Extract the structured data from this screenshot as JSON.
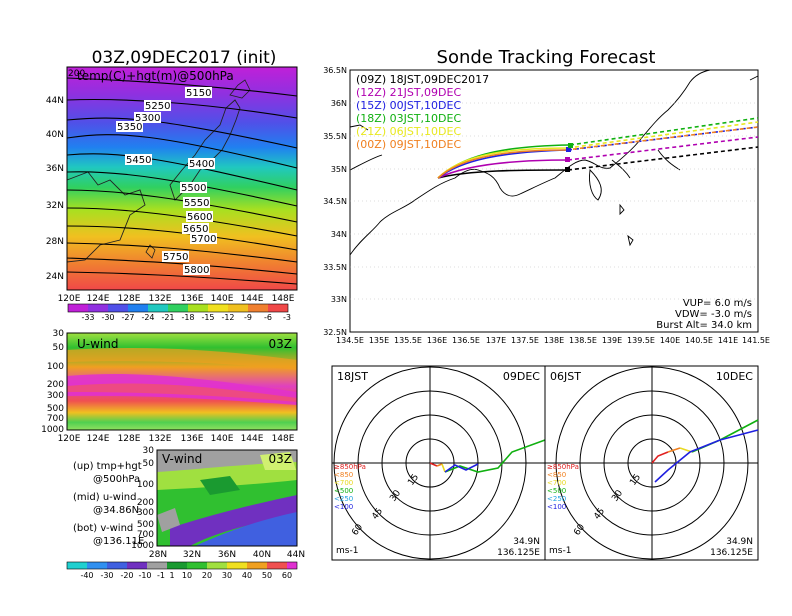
{
  "left_title": "03Z,09DEC2017 (init)",
  "right_title": "Sonde Tracking Forecast",
  "map500": {
    "label": "temp(C)+hgt(m)@500hPa",
    "corner_label": "200",
    "x_ticks": [
      "120E",
      "124E",
      "128E",
      "132E",
      "136E",
      "140E",
      "144E",
      "148E"
    ],
    "y_ticks": [
      "44N",
      "40N",
      "36N",
      "32N",
      "28N",
      "24N"
    ],
    "contour_labels": [
      "5150",
      "5250",
      "5300",
      "5350",
      "5450",
      "5400",
      "5500",
      "5550",
      "5600",
      "5650",
      "5700",
      "5750",
      "5800"
    ],
    "colorbar": [
      "-33",
      "-30",
      "-27",
      "-24",
      "-21",
      "-18",
      "-15",
      "-12",
      "-9",
      "-6",
      "-3"
    ]
  },
  "uwind": {
    "label": "U-wind",
    "time": "03Z",
    "y_ticks": [
      "30",
      "50",
      "100",
      "200",
      "300",
      "500",
      "700",
      "1000"
    ],
    "x_ticks": [
      "120E",
      "124E",
      "128E",
      "132E",
      "136E",
      "140E",
      "144E",
      "148E"
    ]
  },
  "vwind": {
    "label": "V-wind",
    "time": "03Z",
    "y_ticks": [
      "30",
      "50",
      "100",
      "200",
      "300",
      "500",
      "700",
      "1000"
    ],
    "x_ticks": [
      "28N",
      "32N",
      "36N",
      "40N",
      "44N"
    ],
    "colorbar": [
      "-40",
      "-30",
      "-20",
      "-10",
      "-1",
      "1",
      "10",
      "20",
      "30",
      "40",
      "50",
      "60"
    ]
  },
  "legend_notes": {
    "up": "(up) tmp+hgt",
    "up2": "@500hPa",
    "mid": "(mid) u-wind",
    "mid2": "@34.86N",
    "bot": "(bot) v-wind",
    "bot2": "@136.11E"
  },
  "track": {
    "launches": [
      {
        "label": "(09Z) 18JST,09DEC2017",
        "color": "#000000"
      },
      {
        "label": "(12Z) 21JST,09DEC",
        "color": "#b000b0"
      },
      {
        "label": "(15Z) 00JST,10DEC",
        "color": "#2020e0"
      },
      {
        "label": "(18Z) 03JST,10DEC",
        "color": "#10b010"
      },
      {
        "label": "(21Z) 06JST,10DEC",
        "color": "#e8e820"
      },
      {
        "label": "(00Z) 09JST,10DEC",
        "color": "#f08020"
      }
    ],
    "x_ticks": [
      "134.5E",
      "135E",
      "135.5E",
      "136E",
      "136.5E",
      "137E",
      "137.5E",
      "138E",
      "138.5E",
      "139E",
      "139.5E",
      "140E",
      "140.5E",
      "141E",
      "141.5E"
    ],
    "y_ticks": [
      "36.5N",
      "36N",
      "35.5N",
      "35N",
      "34.5N",
      "34N",
      "33.5N",
      "33N",
      "32.5N"
    ],
    "vup": "VUP=  6.0 m/s",
    "vdw": "VDW= -3.0 m/s",
    "burst": "Burst Alt= 34.0 km"
  },
  "hodo1": {
    "left": "18JST",
    "right": "09DEC",
    "unit": "ms-1",
    "lat": "34.9N",
    "lon": "136.125E",
    "rings": [
      "15",
      "30",
      "45",
      "60"
    ],
    "levels": [
      {
        "label": "≥850hPa",
        "color": "#e02020"
      },
      {
        "label": "<850",
        "color": "#f08020"
      },
      {
        "label": "<700",
        "color": "#e8d820"
      },
      {
        "label": "<500",
        "color": "#10b010"
      },
      {
        "label": "<250",
        "color": "#20a0e0"
      },
      {
        "label": "<100",
        "color": "#2020e0"
      }
    ]
  },
  "hodo2": {
    "left": "06JST",
    "right": "10DEC",
    "unit": "ms-1",
    "lat": "34.9N",
    "lon": "136.125E",
    "rings": [
      "15",
      "30",
      "45",
      "60"
    ],
    "levels": [
      {
        "label": "≥850hPa",
        "color": "#e02020"
      },
      {
        "label": "<850",
        "color": "#f08020"
      },
      {
        "label": "<700",
        "color": "#e8d820"
      },
      {
        "label": "<500",
        "color": "#10b010"
      },
      {
        "label": "<250",
        "color": "#20a0e0"
      },
      {
        "label": "<100",
        "color": "#2020e0"
      }
    ]
  }
}
